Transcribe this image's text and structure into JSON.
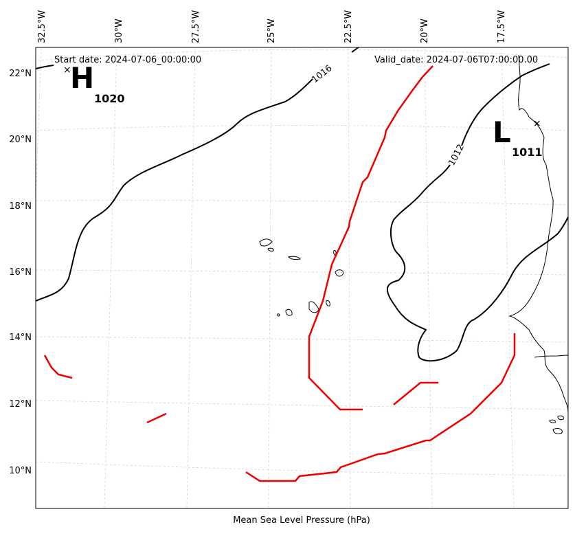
{
  "map": {
    "start_date": "Start date: 2024-07-06_00:00:00",
    "valid_date": "Valid_date: 2024-07-06T07:00:00.00",
    "caption": "Mean Sea Level Pressure (hPa)",
    "lon_labels": [
      "32.5°W",
      "30°W",
      "27.5°W",
      "25°W",
      "22.5°W",
      "20°W",
      "17.5°W"
    ],
    "lat_labels": [
      "22°N",
      "20°N",
      "18°N",
      "16°N",
      "14°N",
      "12°N",
      "10°N"
    ],
    "high_center": {
      "letter": "H",
      "value": "1020"
    },
    "low_center": {
      "letter": "L",
      "value": "1011"
    },
    "contour_labels": [
      "1016",
      "1012"
    ],
    "colors": {
      "isobar": "#000000",
      "front": "#ee0000",
      "grid": "#cccccc"
    }
  }
}
